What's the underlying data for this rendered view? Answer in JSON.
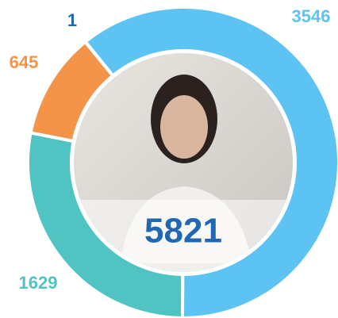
{
  "chart_data": {
    "type": "donut",
    "values": [
      3546,
      1629,
      645,
      1
    ],
    "colors": [
      "#5cc3f3",
      "#4fc4c2",
      "#f39449",
      "#2168b4"
    ],
    "total": 5821
  }
}
